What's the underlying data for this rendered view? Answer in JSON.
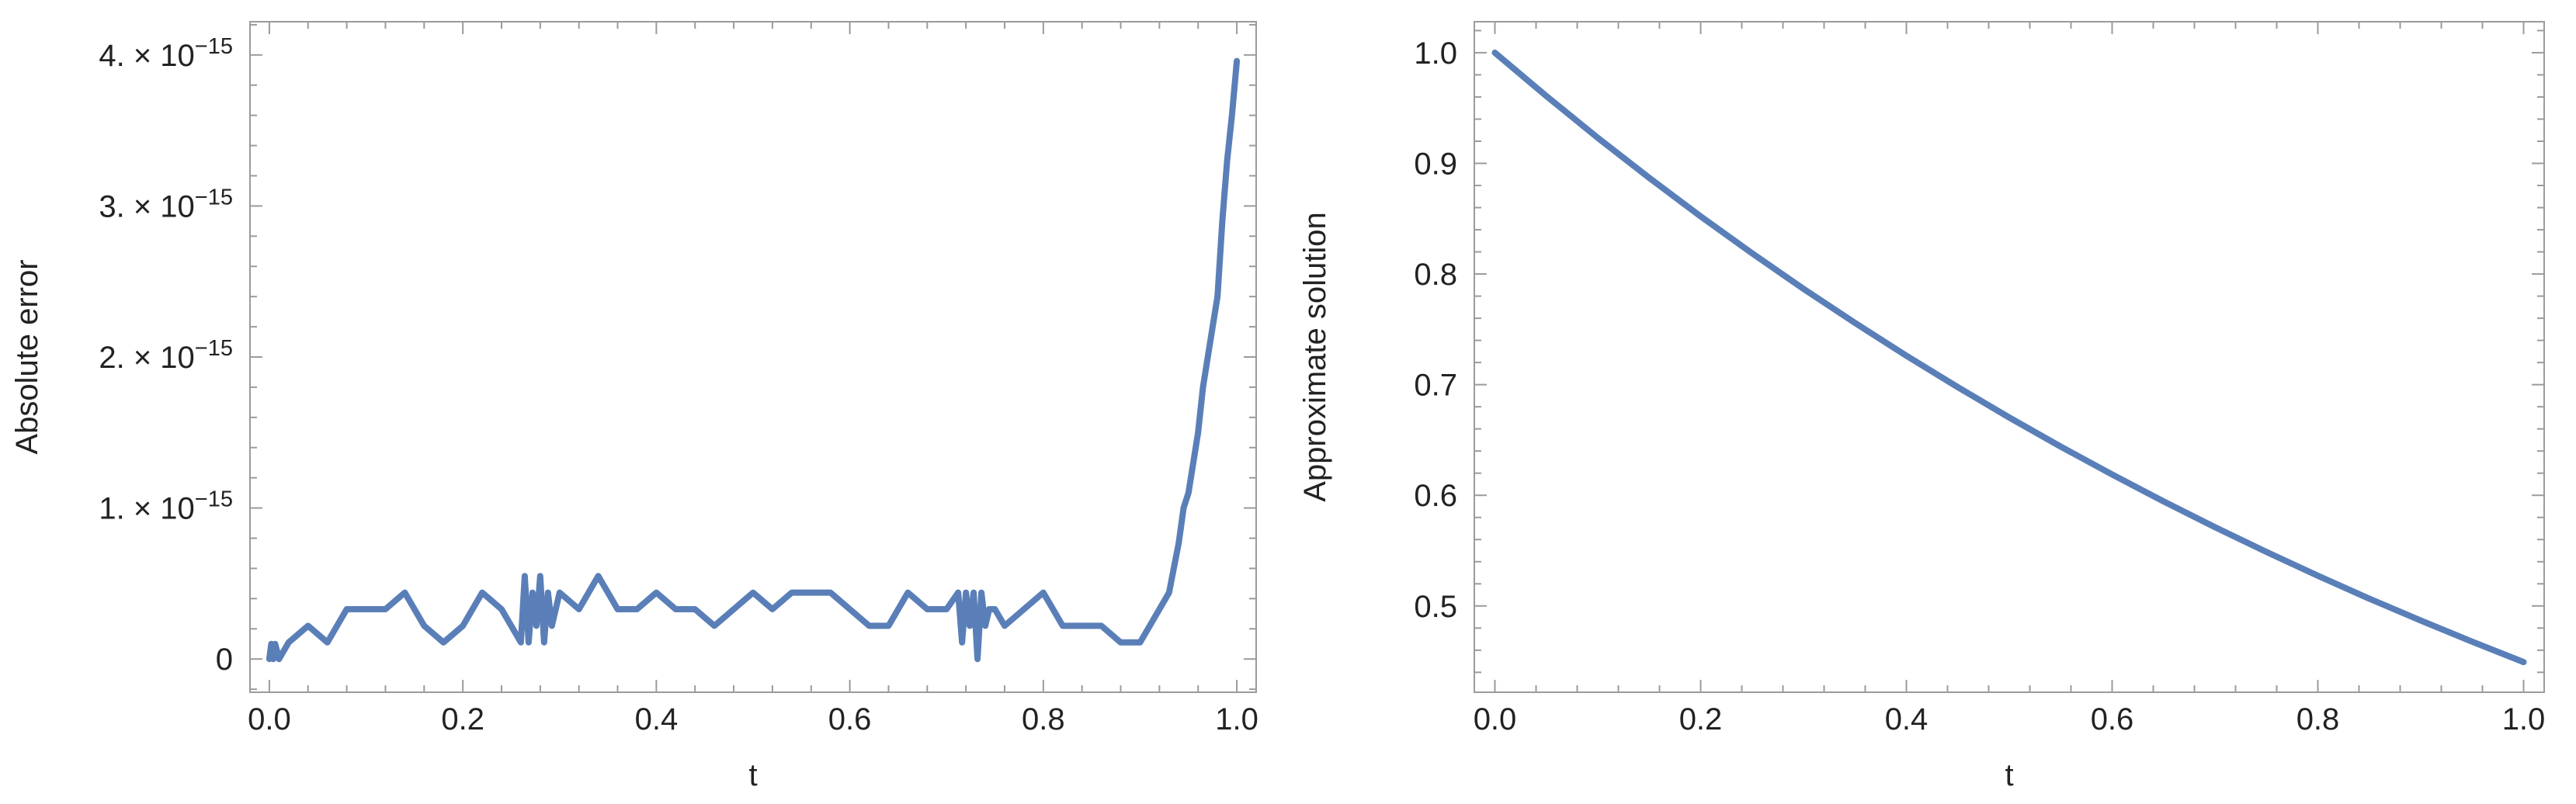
{
  "colors": {
    "series": "#5a7fb8",
    "frame": "#9b9b9b",
    "text": "#222222"
  },
  "chart_data": [
    {
      "type": "line",
      "title": "",
      "xlabel": "t",
      "ylabel": "Absolute error",
      "xlim": [
        -0.02,
        1.02
      ],
      "ylim": [
        -2.2e-16,
        4.22e-15
      ],
      "xticks": [
        0.0,
        0.2,
        0.4,
        0.6,
        0.8,
        1.0
      ],
      "xtick_labels": [
        "0.0",
        "0.2",
        "0.4",
        "0.6",
        "0.8",
        "1.0"
      ],
      "yticks": [
        0,
        1e-15,
        2e-15,
        3e-15,
        4e-15
      ],
      "ytick_labels": [
        {
          "mant": "0",
          "exp": ""
        },
        {
          "mant": "1. × 10",
          "exp": "−15"
        },
        {
          "mant": "2. × 10",
          "exp": "−15"
        },
        {
          "mant": "3. × 10",
          "exp": "−15"
        },
        {
          "mant": "4. × 10",
          "exp": "−15"
        }
      ],
      "grid": false,
      "series": [
        {
          "x": [
            0.0,
            0.002,
            0.004,
            0.006,
            0.01,
            0.02,
            0.04,
            0.06,
            0.08,
            0.1,
            0.12,
            0.14,
            0.16,
            0.18,
            0.2,
            0.22,
            0.24,
            0.26,
            0.264,
            0.268,
            0.272,
            0.276,
            0.28,
            0.284,
            0.288,
            0.292,
            0.3,
            0.32,
            0.34,
            0.36,
            0.38,
            0.4,
            0.42,
            0.44,
            0.46,
            0.48,
            0.5,
            0.52,
            0.54,
            0.56,
            0.58,
            0.6,
            0.62,
            0.64,
            0.66,
            0.68,
            0.7,
            0.712,
            0.716,
            0.72,
            0.724,
            0.728,
            0.732,
            0.736,
            0.74,
            0.744,
            0.75,
            0.76,
            0.78,
            0.8,
            0.82,
            0.84,
            0.86,
            0.88,
            0.9,
            0.92,
            0.93,
            0.94,
            0.945,
            0.95,
            0.955,
            0.96,
            0.965,
            0.97,
            0.975,
            0.98,
            0.985,
            0.99,
            0.995,
            1.0
          ],
          "y": [
            0,
            1e-16,
            0,
            1e-16,
            0,
            1.1e-16,
            2.2e-16,
            1.1e-16,
            3.3e-16,
            3.3e-16,
            3.3e-16,
            4.4e-16,
            2.2e-16,
            1.1e-16,
            2.2e-16,
            4.4e-16,
            3.3e-16,
            1.1e-16,
            5.5e-16,
            1.1e-16,
            4.4e-16,
            2.2e-16,
            5.5e-16,
            1.1e-16,
            4.4e-16,
            2.2e-16,
            4.4e-16,
            3.3e-16,
            5.5e-16,
            3.3e-16,
            3.3e-16,
            4.4e-16,
            3.3e-16,
            3.3e-16,
            2.2e-16,
            3.3e-16,
            4.4e-16,
            3.3e-16,
            4.4e-16,
            4.4e-16,
            4.4e-16,
            3.3e-16,
            2.2e-16,
            2.2e-16,
            4.4e-16,
            3.3e-16,
            3.3e-16,
            4.4e-16,
            1.1e-16,
            4.4e-16,
            2.2e-16,
            4.4e-16,
            0,
            4.4e-16,
            2.2e-16,
            3.3e-16,
            3.3e-16,
            2.2e-16,
            3.3e-16,
            4.4e-16,
            2.2e-16,
            2.2e-16,
            2.2e-16,
            1.1e-16,
            1.1e-16,
            3.3e-16,
            4.4e-16,
            7.7e-16,
            1e-15,
            1.1e-15,
            1.3e-15,
            1.5e-15,
            1.8e-15,
            2e-15,
            2.2e-15,
            2.4e-15,
            2.9e-15,
            3.3e-15,
            3.6e-15,
            3.96e-15
          ]
        }
      ]
    },
    {
      "type": "line",
      "title": "",
      "xlabel": "t",
      "ylabel": "Approximate solution",
      "xlim": [
        -0.02,
        1.02
      ],
      "ylim": [
        0.422,
        1.028
      ],
      "xticks": [
        0.0,
        0.2,
        0.4,
        0.6,
        0.8,
        1.0
      ],
      "xtick_labels": [
        "0.0",
        "0.2",
        "0.4",
        "0.6",
        "0.8",
        "1.0"
      ],
      "yticks": [
        0.5,
        0.6,
        0.7,
        0.8,
        0.9,
        1.0
      ],
      "ytick_labels": [
        {
          "mant": "0.5",
          "exp": ""
        },
        {
          "mant": "0.6",
          "exp": ""
        },
        {
          "mant": "0.7",
          "exp": ""
        },
        {
          "mant": "0.8",
          "exp": ""
        },
        {
          "mant": "0.9",
          "exp": ""
        },
        {
          "mant": "1.0",
          "exp": ""
        }
      ],
      "grid": false,
      "series": [
        {
          "x": [
            0.0,
            0.05,
            0.1,
            0.15,
            0.2,
            0.25,
            0.3,
            0.35,
            0.4,
            0.45,
            0.5,
            0.55,
            0.6,
            0.65,
            0.7,
            0.75,
            0.8,
            0.85,
            0.9,
            0.95,
            1.0
          ],
          "y": [
            1.0,
            0.9608,
            0.9231,
            0.8869,
            0.8521,
            0.8187,
            0.7866,
            0.7558,
            0.7261,
            0.6977,
            0.6703,
            0.644,
            0.6188,
            0.5945,
            0.5712,
            0.5488,
            0.5273,
            0.5066,
            0.4868,
            0.4677,
            0.4493
          ]
        }
      ]
    }
  ]
}
